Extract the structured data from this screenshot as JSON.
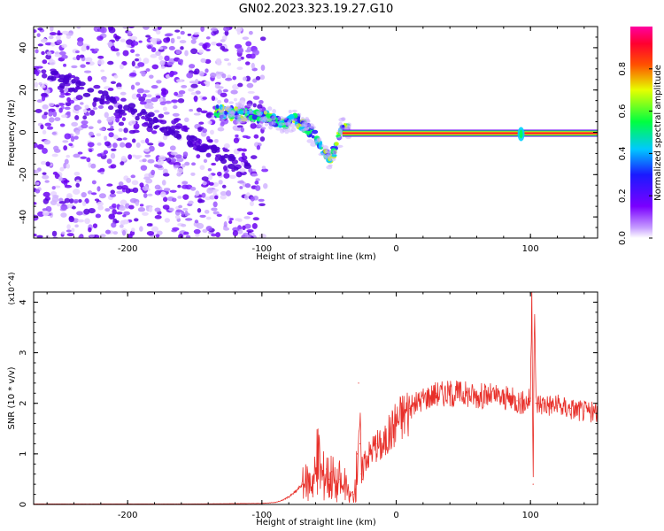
{
  "figure": {
    "title": "GN02.2023.323.19.27.G10"
  },
  "chart_data": [
    {
      "type": "heatmap",
      "xlabel": "Height of straight line (km)",
      "ylabel": "Frequency (Hz)",
      "xlim": [
        -270,
        150
      ],
      "ylim": [
        -50,
        50
      ],
      "x_ticks": [
        -200,
        -100,
        0,
        100
      ],
      "y_ticks": [
        -40,
        -20,
        0,
        20,
        40
      ],
      "colorbar": {
        "label": "Normalized spectral amplitude",
        "range": [
          0.0,
          1.0
        ],
        "ticks": [
          0.0,
          0.2,
          0.4,
          0.6,
          0.8
        ],
        "colormap": "rainbow (white → purple → blue → cyan → green → yellow → red → magenta)"
      },
      "features": {
        "noise_region_x": [
          -270,
          -97
        ],
        "diagonal_trace_points": [
          [
            -265,
            28
          ],
          [
            -230,
            20
          ],
          [
            -190,
            8
          ],
          [
            -150,
            -4
          ],
          [
            -110,
            -18
          ]
        ],
        "spectral_trace_points": [
          [
            -135,
            10
          ],
          [
            -97,
            7
          ],
          [
            -85,
            4
          ],
          [
            -75,
            6
          ],
          [
            -68,
            3
          ],
          [
            -60,
            -2
          ],
          [
            -55,
            -8
          ],
          [
            -50,
            -12
          ],
          [
            -45,
            -8
          ],
          [
            -40,
            2
          ],
          [
            -30,
            2
          ],
          [
            -20,
            1
          ],
          [
            0,
            0
          ],
          [
            150,
            0
          ]
        ],
        "constant_line_frequency": 0,
        "constant_line_x": [
          -40,
          150
        ],
        "blob_at_x": 93
      }
    },
    {
      "type": "line",
      "xlabel": "Height of straight line (km)",
      "ylabel": "SNR (10 * v/v)",
      "y_multiplier": "(x10^4)",
      "xlim": [
        -270,
        150
      ],
      "ylim": [
        0,
        4.2
      ],
      "x_ticks": [
        -200,
        -100,
        0,
        100
      ],
      "y_ticks": [
        0,
        1,
        2,
        3,
        4
      ],
      "color": "#e8302a",
      "series": [
        {
          "x": [
            -270,
            -200,
            -150,
            -100,
            -90,
            -85,
            -80,
            -75,
            -70,
            -65,
            -60,
            -58,
            -55,
            -52,
            -50,
            -48,
            -45,
            -42,
            -40,
            -38,
            -35,
            -32,
            -30,
            -29,
            -28,
            -27,
            -26,
            -25,
            -24,
            -22,
            -20,
            -15,
            -10,
            -5,
            0,
            10,
            20,
            30,
            40,
            50,
            60,
            70,
            80,
            90,
            95,
            100,
            101,
            102,
            103,
            104,
            105,
            106,
            110,
            120,
            130,
            140,
            150
          ],
          "y": [
            0.01,
            0.01,
            0.01,
            0.02,
            0.04,
            0.08,
            0.15,
            0.25,
            0.4,
            0.45,
            0.6,
            0.95,
            0.55,
            0.7,
            0.5,
            0.65,
            0.35,
            0.5,
            0.3,
            0.4,
            0.15,
            0.2,
            0.3,
            1.0,
            2.4,
            1.2,
            0.6,
            0.5,
            0.9,
            0.95,
            1.0,
            1.2,
            1.15,
            1.4,
            1.65,
            1.9,
            2.1,
            2.2,
            2.2,
            2.2,
            2.15,
            2.15,
            2.1,
            2.05,
            2.0,
            2.1,
            4.2,
            0.4,
            4.2,
            2.0,
            2.0,
            2.0,
            2.0,
            1.95,
            1.9,
            1.85,
            1.8
          ]
        }
      ]
    }
  ]
}
